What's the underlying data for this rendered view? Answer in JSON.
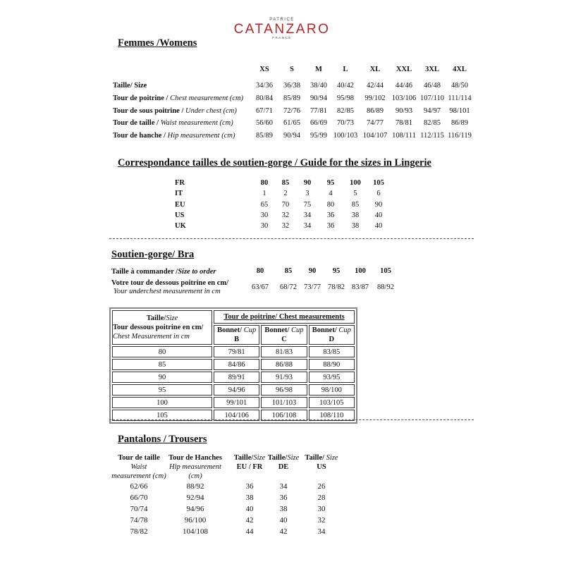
{
  "brand": {
    "top": "PATRICE",
    "name": "CATANZARO",
    "bottom": "FRANCE",
    "color": "#b3262a"
  },
  "womens": {
    "title": "Femmes /Womens",
    "sizes": [
      "XS",
      "S",
      "M",
      "L",
      "XL",
      "XXL",
      "3XL",
      "4XL"
    ],
    "rows": [
      {
        "label_bold": "Taille/ Size",
        "label_italic": "",
        "values": [
          "34/36",
          "36/38",
          "38/40",
          "40/42",
          "42/44",
          "44/46",
          "46/48",
          "48/50"
        ]
      },
      {
        "label_bold": "Tour de poitrine /",
        "label_italic": " Chest measurement (cm)",
        "values": [
          "80/84",
          "85/89",
          "90/94",
          "95/98",
          "99/102",
          "103/106",
          "107/110",
          "111/114"
        ]
      },
      {
        "label_bold": "Tour de sous poitrine /",
        "label_italic": " Under chest (cm)",
        "values": [
          "67/71",
          "72/76",
          "77/81",
          "82/85",
          "86/89",
          "90/93",
          "94/97",
          "98/101"
        ]
      },
      {
        "label_bold": "Tour de taille /",
        "label_italic": " Waist measurement (cm)",
        "values": [
          "56/60",
          "61/65",
          "66/69",
          "70/73",
          "74/77",
          "78/81",
          "82/85",
          "86/89"
        ]
      },
      {
        "label_bold": "Tour de hanche /",
        "label_italic": " Hip measurement (cm)",
        "values": [
          "85/89",
          "90/94",
          "95/99",
          "100/103",
          "104/107",
          "108/111",
          "112/115",
          "116/119"
        ]
      }
    ]
  },
  "lingerie": {
    "title": "Correspondance tailles de soutien-gorge / Guide for the sizes in Lingerie",
    "rows": [
      {
        "label": "FR",
        "values": [
          "80",
          "85",
          "90",
          "95",
          "100",
          "105"
        ]
      },
      {
        "label": "IT",
        "values": [
          "1",
          "2",
          "3",
          "4",
          "5",
          "6"
        ]
      },
      {
        "label": "EU",
        "values": [
          "65",
          "70",
          "75",
          "80",
          "85",
          "90"
        ]
      },
      {
        "label": "US",
        "values": [
          "30",
          "32",
          "34",
          "36",
          "38",
          "40"
        ]
      },
      {
        "label": "UK",
        "values": [
          "30",
          "32",
          "34",
          "36",
          "38",
          "40"
        ]
      }
    ]
  },
  "bra": {
    "title": "Soutien-gorge/ Bra",
    "order_label_bold": "Taille à commander /",
    "order_label_italic": "Size to order",
    "order_values": [
      "80",
      "85",
      "90",
      "95",
      "100",
      "105"
    ],
    "under_label_bold": "Votre tour de dessous poitrine en cm/",
    "under_label_italic": "Your underchest measurement in cm",
    "under_values": [
      "63/67",
      "68/72",
      "73/77",
      "78/82",
      "83/87",
      "88/92"
    ],
    "table": {
      "h_taille_bold": "Taille/",
      "h_taille_italic": "Size",
      "h_under_bold": "Tour dessous poitrine en cm/",
      "h_under_italic": "Chest Measurement in cm",
      "h_chest": "Tour de poitrine/ Chest measurements",
      "cup_bold": "Bonnet/",
      "cup_italic": " Cup",
      "cups": [
        "B",
        "C",
        "D"
      ],
      "rows": [
        [
          "80",
          "79/81",
          "81/83",
          "83/85"
        ],
        [
          "85",
          "84/86",
          "86/88",
          "88/90"
        ],
        [
          "90",
          "89/91",
          "91/93",
          "93/95"
        ],
        [
          "95",
          "94/96",
          "96/98",
          "98/100"
        ],
        [
          "100",
          "99/101",
          "101/103",
          "103/105"
        ],
        [
          "105",
          "104/106",
          "106/108",
          "108/110"
        ]
      ]
    }
  },
  "trousers": {
    "title": "Pantalons / Trousers",
    "headers": [
      {
        "bold": "Tour de taille",
        "italic": "",
        "lines": [
          "Waist",
          "measurement (cm)"
        ]
      },
      {
        "bold": "Tour de Hanches",
        "italic": "",
        "lines": [
          "Hip measurement",
          "(cm)"
        ]
      },
      {
        "bold": "Taille/",
        "italic": "Size",
        "sub": "EU / FR"
      },
      {
        "bold": "Taille/",
        "italic": "Size",
        "sub": "DE"
      },
      {
        "bold": "Taille/",
        "italic": " Size",
        "sub": "US"
      }
    ],
    "rows": [
      [
        "62/66",
        "88/92",
        "36",
        "34",
        "26"
      ],
      [
        "66/70",
        "92/94",
        "38",
        "36",
        "28"
      ],
      [
        "70/74",
        "94/96",
        "40",
        "38",
        "30"
      ],
      [
        "74/78",
        "96/100",
        "42",
        "40",
        "32"
      ],
      [
        "78/82",
        "104/108",
        "44",
        "42",
        "34"
      ]
    ]
  }
}
